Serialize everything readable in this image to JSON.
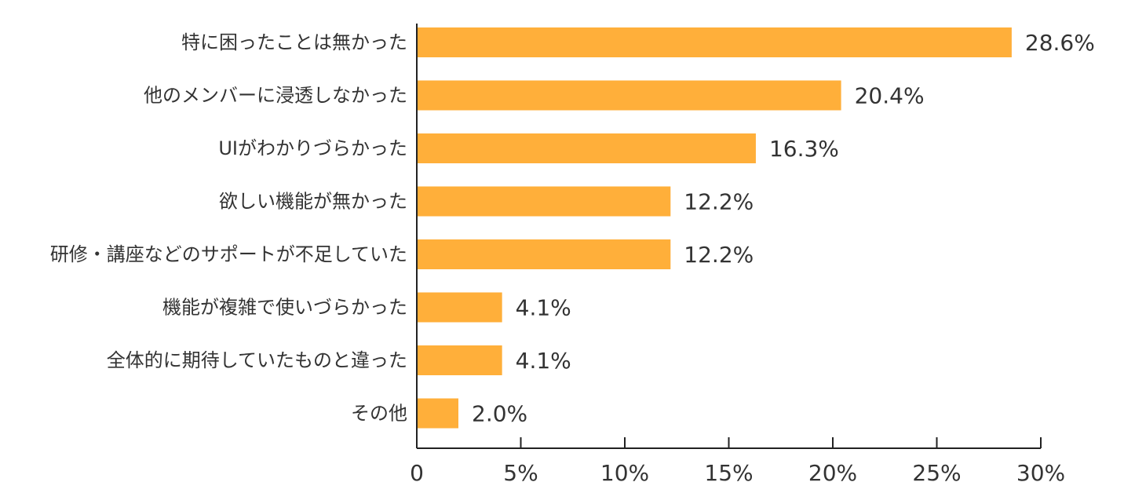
{
  "chart_data": {
    "type": "bar",
    "orientation": "horizontal",
    "categories": [
      "特に困ったことは無かった",
      "他のメンバーに浸透しなかった",
      "UIがわかりづらかった",
      "欲しい機能が無かった",
      "研修・講座などのサポートが不足していた",
      "機能が複雑で使いづらかった",
      "全体的に期待していたものと違った",
      "その他"
    ],
    "values": [
      28.6,
      20.4,
      16.3,
      12.2,
      12.2,
      4.1,
      4.1,
      2.0
    ],
    "value_labels": [
      "28.6%",
      "20.4%",
      "16.3%",
      "12.2%",
      "12.2%",
      "4.1%",
      "4.1%",
      "2.0%"
    ],
    "xlim": [
      0,
      30
    ],
    "x_ticks": [
      0,
      5,
      10,
      15,
      20,
      25,
      30
    ],
    "x_tick_labels": [
      "0",
      "5%",
      "10%",
      "15%",
      "20%",
      "25%",
      "30%"
    ],
    "bar_color": "#FFAF3A",
    "grid": false,
    "legend": "none"
  }
}
